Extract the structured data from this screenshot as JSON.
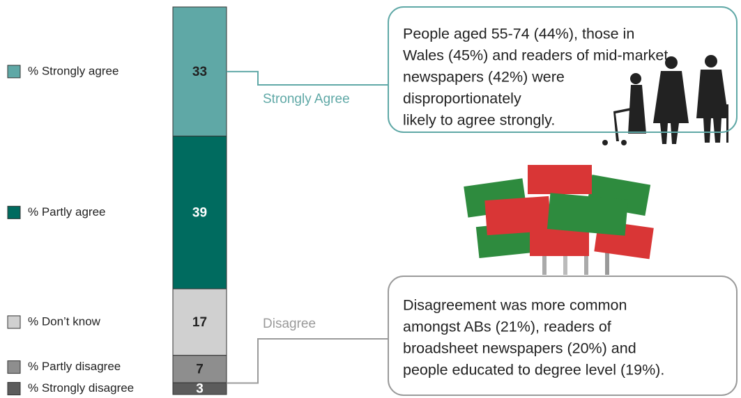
{
  "chart_data": {
    "type": "stacked-bar",
    "series": [
      {
        "name": "% Strongly agree",
        "color": "#5fa8a6",
        "values": [
          33
        ]
      },
      {
        "name": "% Partly agree",
        "color": "#006b5f",
        "values": [
          39
        ]
      },
      {
        "name": "% Don’t know",
        "color": "#d0d0d0",
        "values": [
          17
        ]
      },
      {
        "name": "% Partly disagree",
        "color": "#8e8e8e",
        "values": [
          7
        ]
      },
      {
        "name": "% Strongly disagree",
        "color": "#5c5c5c",
        "values": [
          3
        ]
      }
    ],
    "callouts": [
      {
        "label": "Strongly Agree",
        "color": "#5fa8a6",
        "lines": [
          "People aged 55-74 (44%), those in",
          "Wales (45%) and readers of mid-market",
          "newspapers (42%) were",
          "disproportionately",
          "likely to agree strongly."
        ]
      },
      {
        "label": "Disagree",
        "color": "#9a9a9a",
        "lines": [
          "Disagreement was more common",
          "amongst ABs (21%), readers of",
          "broadsheet newspapers (20%) and",
          "people educated to degree level (19%)."
        ]
      }
    ]
  }
}
